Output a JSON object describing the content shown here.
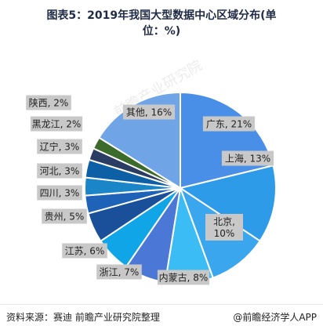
{
  "title_line1": "图表5：2019年我国大型数据中心区域分布(单",
  "title_line2": "位：%)",
  "source": "资料来源：赛迪 前瞻产业研究院整理",
  "brand": "@前瞻经济学人APP",
  "watermark": "前瞻产业研究院",
  "chart_data": {
    "type": "pie",
    "title": "2019年我国大型数据中心区域分布(单位：%)",
    "slices": [
      {
        "name": "广东",
        "value": 21,
        "label": "广东, 21%",
        "color": "#4a8fe7"
      },
      {
        "name": "上海",
        "value": 13,
        "label": "上海, 13%",
        "color": "#2e9be8"
      },
      {
        "name": "北京",
        "value": 10,
        "label": "北京,\n10%",
        "color": "#3aa6ee"
      },
      {
        "name": "内蒙古",
        "value": 8,
        "label": "内蒙古, 8%",
        "color": "#3bbcf5"
      },
      {
        "name": "浙江",
        "value": 7,
        "label": "浙江, 7%",
        "color": "#4b78d6"
      },
      {
        "name": "江苏",
        "value": 6,
        "label": "江苏, 6%",
        "color": "#10a5e6"
      },
      {
        "name": "贵州",
        "value": 5,
        "label": "贵州, 5%",
        "color": "#1a4f9a"
      },
      {
        "name": "四川",
        "value": 3,
        "label": "四川, 3%",
        "color": "#1e63b8"
      },
      {
        "name": "河北",
        "value": 3,
        "label": "河北, 3%",
        "color": "#1a86c8"
      },
      {
        "name": "辽宁",
        "value": 3,
        "label": "辽宁, 3%",
        "color": "#0d5fa6"
      },
      {
        "name": "黑龙江",
        "value": 2,
        "label": "黑龙江, 2%",
        "color": "#2b3d63"
      },
      {
        "name": "陕西",
        "value": 2,
        "label": "陕西, 2%",
        "color": "#3d6b2b"
      },
      {
        "name": "其他",
        "value": 16,
        "label": "其他, 16%",
        "color": "#6fa5e6"
      }
    ]
  }
}
